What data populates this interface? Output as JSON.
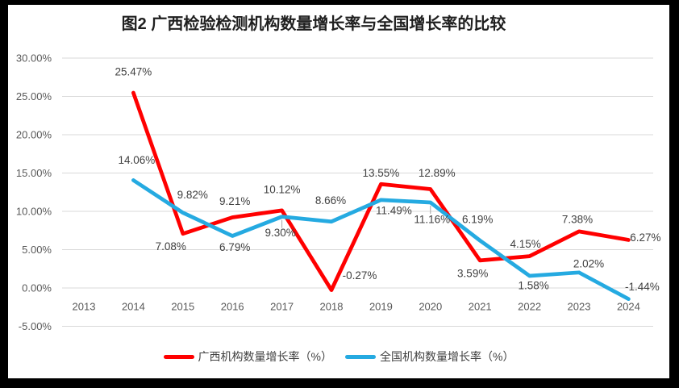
{
  "title": "图2 广西检验检测机构数量增长率与全国增长率的比较",
  "colors": {
    "guangxi_line": "#FF0000",
    "national_line": "#25AAE1",
    "gridline": "#D9D9D9",
    "axis_text": "#595959",
    "data_label_text": "#404040",
    "leader_line": "#A6A6A6",
    "frame": "#000000",
    "background": "#FFFFFF"
  },
  "chart_data": {
    "type": "line",
    "title": "图2 广西检验检测机构数量增长率与全国增长率的比较",
    "x": [
      "2013",
      "2014",
      "2015",
      "2016",
      "2017",
      "2018",
      "2019",
      "2020",
      "2021",
      "2022",
      "2023",
      "2024"
    ],
    "series": [
      {
        "name": "广西机构数量增长率（%）",
        "color": "#FF0000",
        "values": [
          null,
          25.47,
          7.08,
          9.21,
          10.12,
          -0.27,
          13.55,
          12.89,
          3.59,
          4.15,
          7.38,
          6.27
        ],
        "labels": [
          null,
          "25.47%",
          "7.08%",
          "9.21%",
          "10.12%",
          "-0.27%",
          "13.55%",
          "12.89%",
          "3.59%",
          "4.15%",
          "7.38%",
          "6.27%"
        ]
      },
      {
        "name": "全国机构数量增长率（%）",
        "color": "#25AAE1",
        "values": [
          null,
          14.06,
          9.82,
          6.79,
          9.3,
          8.66,
          11.49,
          11.16,
          6.19,
          1.58,
          2.02,
          -1.44
        ],
        "labels": [
          null,
          "14.06%",
          "9.82%",
          "6.79%",
          "9.30%",
          "8.66%",
          "11.49%",
          "11.16%",
          "6.19%",
          "1.58%",
          "2.02%",
          "-1.44%"
        ]
      }
    ],
    "ylim": [
      -5,
      30
    ],
    "ytick_step": 5,
    "ytick_labels": [
      "30.00%",
      "25.00%",
      "20.00%",
      "15.00%",
      "10.00%",
      "5.00%",
      "0.00%",
      "-5.00%"
    ],
    "grid": true,
    "legend_position": "bottom",
    "label_offsets": [
      [
        null,
        [
          0,
          -26
        ],
        [
          -15,
          16
        ],
        [
          3,
          -20
        ],
        [
          0,
          -26
        ],
        [
          35,
          -18
        ],
        [
          0,
          -14
        ],
        [
          8,
          -20
        ],
        [
          -9,
          16
        ],
        [
          -5,
          -15
        ],
        [
          -2,
          -15
        ],
        [
          21,
          -3
        ]
      ],
      [
        null,
        [
          4,
          -25
        ],
        [
          12,
          -22
        ],
        [
          3,
          14
        ],
        [
          -2,
          20
        ],
        [
          -1,
          -26
        ],
        [
          16,
          13
        ],
        [
          2,
          21
        ],
        [
          -3,
          -26
        ],
        [
          5,
          12
        ],
        [
          12,
          -11
        ],
        [
          17,
          -15
        ]
      ]
    ],
    "leader_lines": [
      {
        "series": 1,
        "index": 4
      },
      {
        "series": 1,
        "index": 7
      }
    ]
  }
}
